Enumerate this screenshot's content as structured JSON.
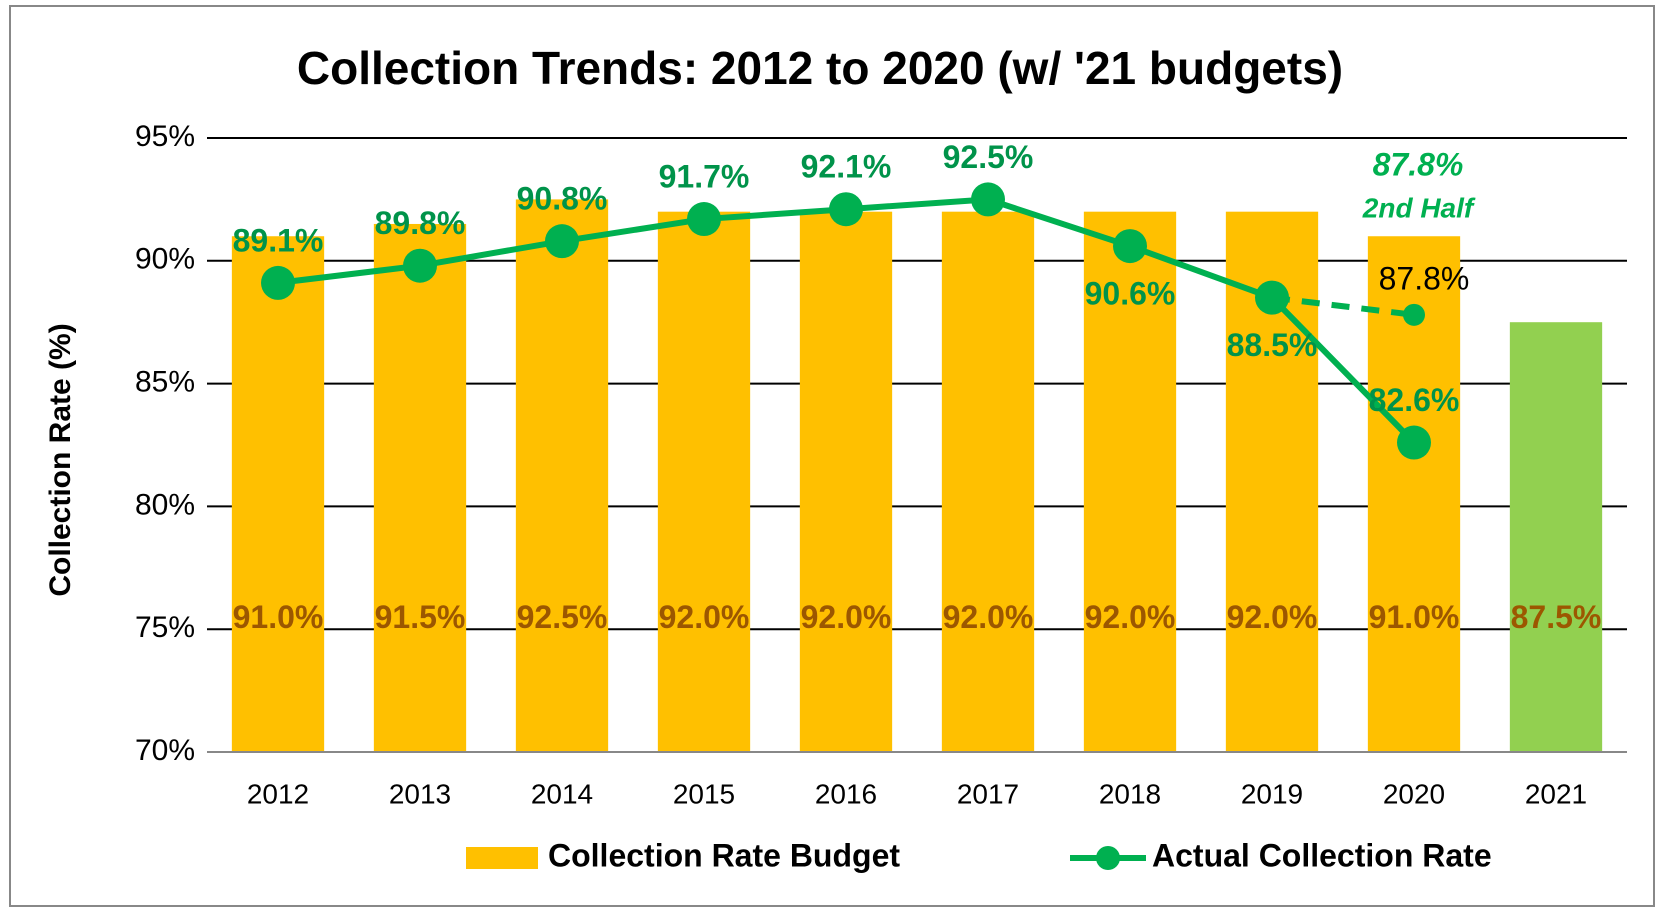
{
  "chart_data": {
    "type": "bar_line",
    "title": "Collection Trends: 2012 to 2020 (w/ '21 budgets)",
    "y_label": "Collection Rate (%)",
    "categories": [
      "2012",
      "2013",
      "2014",
      "2015",
      "2016",
      "2017",
      "2018",
      "2019",
      "2020",
      "2021"
    ],
    "ylim": [
      70,
      95
    ],
    "yticks": [
      {
        "value": 70,
        "label": "70%"
      },
      {
        "value": 75,
        "label": "75%"
      },
      {
        "value": 80,
        "label": "80%"
      },
      {
        "value": 85,
        "label": "85%"
      },
      {
        "value": 90,
        "label": "90%"
      },
      {
        "value": 95,
        "label": "95%"
      }
    ],
    "grid": true,
    "series": [
      {
        "name": "Collection Rate Budget",
        "type": "bar",
        "color": "#ffc000",
        "colors": [
          "#ffc000",
          "#ffc000",
          "#ffc000",
          "#ffc000",
          "#ffc000",
          "#ffc000",
          "#ffc000",
          "#ffc000",
          "#ffc000",
          "#92d050"
        ],
        "label_color": "#9c5700",
        "values": [
          91.0,
          91.5,
          92.5,
          92.0,
          92.0,
          92.0,
          92.0,
          92.0,
          91.0,
          87.5
        ],
        "value_labels": [
          "91.0%",
          "91.5%",
          "92.5%",
          "92.0%",
          "92.0%",
          "92.0%",
          "92.0%",
          "92.0%",
          "91.0%",
          "87.5%"
        ]
      },
      {
        "name": "Actual Collection Rate",
        "type": "line",
        "color": "#00b050",
        "label_color": "#00934a",
        "values": [
          89.1,
          89.8,
          90.8,
          91.7,
          92.1,
          92.5,
          90.6,
          88.5,
          82.6,
          null
        ],
        "value_labels": [
          "89.1%",
          "89.8%",
          "90.8%",
          "91.7%",
          "92.1%",
          "92.5%",
          "90.6%",
          "88.5%",
          "82.6%",
          null
        ]
      }
    ],
    "dashed_line": {
      "color": "#00b050",
      "label_color": "#000000",
      "values": [
        null,
        null,
        null,
        null,
        null,
        null,
        null,
        88.5,
        87.8,
        null
      ],
      "value_labels": [
        null,
        null,
        null,
        null,
        null,
        null,
        null,
        null,
        "87.8%",
        null
      ]
    },
    "annotation": {
      "text": "87.8%",
      "note": "2nd Half",
      "color": "#00b050"
    }
  }
}
